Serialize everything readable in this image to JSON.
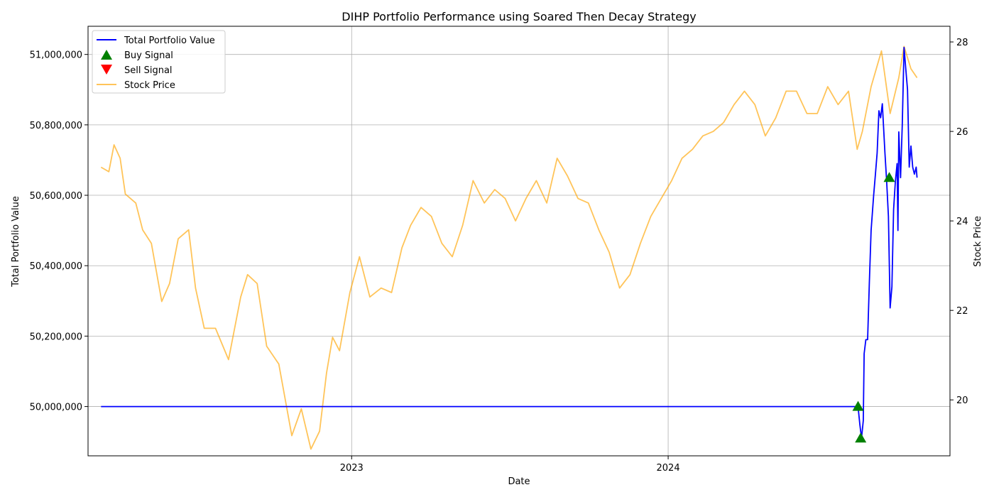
{
  "chart_data": {
    "type": "line",
    "title": "DIHP Portfolio Performance using Soared Then Decay Strategy",
    "xlabel": "Date",
    "ylabel": "Total Portfolio Value",
    "y2label": "Stock Price",
    "x_ticks": [
      "2023",
      "2024"
    ],
    "y_ticks": [
      "50,000,000",
      "50,200,000",
      "50,400,000",
      "50,600,000",
      "50,800,000",
      "51,000,000"
    ],
    "y2_ticks": [
      "20",
      "22",
      "24",
      "26",
      "28"
    ],
    "xlim": [
      "2022-03-03",
      "2024-11-21"
    ],
    "ylim": [
      49860000,
      51080000
    ],
    "y2lim": [
      18.75,
      28.35
    ],
    "grid": true,
    "legend_position": "top-left",
    "colors": {
      "portfolio": "#0000ff",
      "stock": "#ffa500",
      "buy": "#008000",
      "sell": "#ff0000"
    },
    "legend": [
      "Total Portfolio Value",
      "Buy Signal",
      "Sell Signal",
      "Stock Price"
    ],
    "series": [
      {
        "name": "Total Portfolio Value",
        "axis": "left",
        "points": [
          [
            "2022-03-18",
            50000000
          ],
          [
            "2024-08-07",
            50000000
          ],
          [
            "2024-08-09",
            49950000
          ],
          [
            "2024-08-11",
            49910000
          ],
          [
            "2024-08-13",
            49960000
          ],
          [
            "2024-08-14",
            50150000
          ],
          [
            "2024-08-16",
            50190000
          ],
          [
            "2024-08-18",
            50190000
          ],
          [
            "2024-08-20",
            50350000
          ],
          [
            "2024-08-22",
            50500000
          ],
          [
            "2024-08-25",
            50600000
          ],
          [
            "2024-08-27",
            50660000
          ],
          [
            "2024-08-29",
            50720000
          ],
          [
            "2024-08-31",
            50840000
          ],
          [
            "2024-09-02",
            50820000
          ],
          [
            "2024-09-04",
            50860000
          ],
          [
            "2024-09-07",
            50720000
          ],
          [
            "2024-09-09",
            50640000
          ],
          [
            "2024-09-11",
            50540000
          ],
          [
            "2024-09-13",
            50280000
          ],
          [
            "2024-09-15",
            50340000
          ],
          [
            "2024-09-17",
            50560000
          ],
          [
            "2024-09-19",
            50640000
          ],
          [
            "2024-09-21",
            50690000
          ],
          [
            "2024-09-22",
            50500000
          ],
          [
            "2024-09-23",
            50780000
          ],
          [
            "2024-09-25",
            50650000
          ],
          [
            "2024-09-27",
            50800000
          ],
          [
            "2024-09-29",
            51020000
          ],
          [
            "2024-10-01",
            50960000
          ],
          [
            "2024-10-03",
            50900000
          ],
          [
            "2024-10-05",
            50680000
          ],
          [
            "2024-10-07",
            50740000
          ],
          [
            "2024-10-09",
            50680000
          ],
          [
            "2024-10-11",
            50660000
          ],
          [
            "2024-10-13",
            50680000
          ],
          [
            "2024-10-14",
            50650000
          ]
        ]
      },
      {
        "name": "Stock Price",
        "axis": "right",
        "points": [
          [
            "2022-03-18",
            25.2
          ],
          [
            "2022-03-27",
            25.1
          ],
          [
            "2022-04-02",
            25.7
          ],
          [
            "2022-04-09",
            25.4
          ],
          [
            "2022-04-15",
            24.6
          ],
          [
            "2022-04-27",
            24.4
          ],
          [
            "2022-05-05",
            23.8
          ],
          [
            "2022-05-15",
            23.5
          ],
          [
            "2022-05-27",
            22.2
          ],
          [
            "2022-06-05",
            22.6
          ],
          [
            "2022-06-15",
            23.6
          ],
          [
            "2022-06-27",
            23.8
          ],
          [
            "2022-07-05",
            22.5
          ],
          [
            "2022-07-15",
            21.6
          ],
          [
            "2022-07-28",
            21.6
          ],
          [
            "2022-08-12",
            20.9
          ],
          [
            "2022-08-26",
            22.3
          ],
          [
            "2022-09-03",
            22.8
          ],
          [
            "2022-09-14",
            22.6
          ],
          [
            "2022-09-25",
            21.2
          ],
          [
            "2022-10-09",
            20.8
          ],
          [
            "2022-10-24",
            19.2
          ],
          [
            "2022-11-04",
            19.8
          ],
          [
            "2022-11-15",
            18.9
          ],
          [
            "2022-11-25",
            19.3
          ],
          [
            "2022-12-03",
            20.6
          ],
          [
            "2022-12-10",
            21.4
          ],
          [
            "2022-12-18",
            21.1
          ],
          [
            "2022-12-30",
            22.4
          ],
          [
            "2023-01-10",
            23.2
          ],
          [
            "2023-01-22",
            22.3
          ],
          [
            "2023-02-04",
            22.5
          ],
          [
            "2023-02-16",
            22.4
          ],
          [
            "2023-02-28",
            23.4
          ],
          [
            "2023-03-10",
            23.9
          ],
          [
            "2023-03-22",
            24.3
          ],
          [
            "2023-04-03",
            24.1
          ],
          [
            "2023-04-15",
            23.5
          ],
          [
            "2023-04-27",
            23.2
          ],
          [
            "2023-05-09",
            23.9
          ],
          [
            "2023-05-21",
            24.9
          ],
          [
            "2023-06-03",
            24.4
          ],
          [
            "2023-06-15",
            24.7
          ],
          [
            "2023-06-27",
            24.5
          ],
          [
            "2023-07-09",
            24.0
          ],
          [
            "2023-07-21",
            24.5
          ],
          [
            "2023-08-02",
            24.9
          ],
          [
            "2023-08-14",
            24.4
          ],
          [
            "2023-08-26",
            25.4
          ],
          [
            "2023-09-07",
            25.0
          ],
          [
            "2023-09-19",
            24.5
          ],
          [
            "2023-10-01",
            24.4
          ],
          [
            "2023-10-13",
            23.8
          ],
          [
            "2023-10-25",
            23.3
          ],
          [
            "2023-11-06",
            22.5
          ],
          [
            "2023-11-18",
            22.8
          ],
          [
            "2023-11-30",
            23.5
          ],
          [
            "2023-12-12",
            24.1
          ],
          [
            "2023-12-24",
            24.5
          ],
          [
            "2024-01-05",
            24.9
          ],
          [
            "2024-01-17",
            25.4
          ],
          [
            "2024-01-29",
            25.6
          ],
          [
            "2024-02-10",
            25.9
          ],
          [
            "2024-02-22",
            26.0
          ],
          [
            "2024-03-05",
            26.2
          ],
          [
            "2024-03-17",
            26.6
          ],
          [
            "2024-03-29",
            26.9
          ],
          [
            "2024-04-10",
            26.6
          ],
          [
            "2024-04-22",
            25.9
          ],
          [
            "2024-05-04",
            26.3
          ],
          [
            "2024-05-16",
            26.9
          ],
          [
            "2024-05-28",
            26.9
          ],
          [
            "2024-06-09",
            26.4
          ],
          [
            "2024-06-21",
            26.4
          ],
          [
            "2024-07-03",
            27.0
          ],
          [
            "2024-07-15",
            26.6
          ],
          [
            "2024-07-27",
            26.9
          ],
          [
            "2024-08-06",
            25.6
          ],
          [
            "2024-08-12",
            26.0
          ],
          [
            "2024-08-22",
            27.0
          ],
          [
            "2024-09-03",
            27.8
          ],
          [
            "2024-09-13",
            26.4
          ],
          [
            "2024-09-23",
            27.2
          ],
          [
            "2024-09-29",
            27.9
          ],
          [
            "2024-10-07",
            27.4
          ],
          [
            "2024-10-14",
            27.2
          ]
        ]
      }
    ],
    "buy_signals": [
      [
        "2024-08-07",
        50000000
      ],
      [
        "2024-08-10",
        49910000
      ],
      [
        "2024-09-12",
        50650000
      ]
    ],
    "sell_signals": []
  }
}
